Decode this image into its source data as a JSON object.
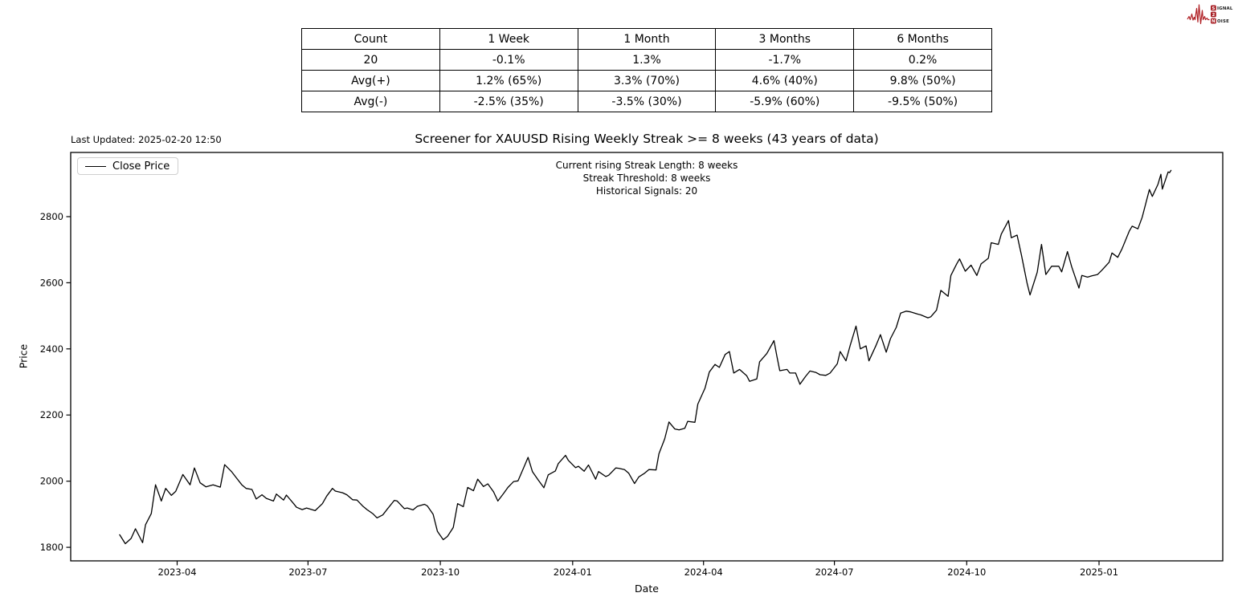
{
  "logo": {
    "word1_initial": "S",
    "word1_rest": "IGNAL",
    "word2": "2",
    "word3_initial": "N",
    "word3_rest": "OISE",
    "accent_color": "#a81e24"
  },
  "stats_table": {
    "headers": [
      "Count",
      "1 Week",
      "1 Month",
      "3 Months",
      "6 Months"
    ],
    "rows": [
      [
        "20",
        "-0.1%",
        "1.3%",
        "-1.7%",
        "0.2%"
      ],
      [
        "Avg(+)",
        "1.2% (65%)",
        "3.3% (70%)",
        "4.6% (40%)",
        "9.8% (50%)"
      ],
      [
        "Avg(-)",
        "-2.5% (35%)",
        "-3.5% (30%)",
        "-5.9% (60%)",
        "-9.5% (50%)"
      ]
    ]
  },
  "chart": {
    "last_updated": "Last Updated: 2025-02-20 12:50",
    "title": "Screener for XAUUSD Rising Weekly Streak >= 8 weeks (43 years of data)",
    "annotations": [
      "Current rising Streak Length: 8 weeks",
      "Streak Threshold: 8 weeks",
      "Historical Signals: 20"
    ],
    "legend_label": "Close Price",
    "xlabel": "Date",
    "ylabel": "Price"
  },
  "chart_data": {
    "type": "line",
    "title": "Screener for XAUUSD Rising Weekly Streak >= 8 weeks (43 years of data)",
    "xlabel": "Date",
    "ylabel": "Price",
    "grid": false,
    "legend_position": "upper left",
    "line_color": "#000000",
    "x_domain": [
      "2023-01-17",
      "2025-03-28"
    ],
    "y_domain": [
      1759,
      2994
    ],
    "yticks": [
      1800,
      2000,
      2200,
      2400,
      2600,
      2800
    ],
    "xticks": [
      {
        "label": "2023-04",
        "date": "2023-04-01"
      },
      {
        "label": "2023-07",
        "date": "2023-07-01"
      },
      {
        "label": "2023-10",
        "date": "2023-10-01"
      },
      {
        "label": "2024-01",
        "date": "2024-01-01"
      },
      {
        "label": "2024-04",
        "date": "2024-04-01"
      },
      {
        "label": "2024-07",
        "date": "2024-07-01"
      },
      {
        "label": "2024-10",
        "date": "2024-10-01"
      },
      {
        "label": "2025-01",
        "date": "2025-01-01"
      }
    ],
    "series": [
      {
        "name": "Close Price",
        "color": "#000000",
        "data": [
          [
            "2023-02-20",
            1838
          ],
          [
            "2023-02-24",
            1811
          ],
          [
            "2023-02-28",
            1827
          ],
          [
            "2023-03-03",
            1856
          ],
          [
            "2023-03-08",
            1814
          ],
          [
            "2023-03-10",
            1868
          ],
          [
            "2023-03-14",
            1902
          ],
          [
            "2023-03-17",
            1989
          ],
          [
            "2023-03-21",
            1940
          ],
          [
            "2023-03-24",
            1978
          ],
          [
            "2023-03-28",
            1957
          ],
          [
            "2023-03-31",
            1969
          ],
          [
            "2023-04-05",
            2020
          ],
          [
            "2023-04-10",
            1989
          ],
          [
            "2023-04-13",
            2040
          ],
          [
            "2023-04-17",
            1995
          ],
          [
            "2023-04-21",
            1983
          ],
          [
            "2023-04-26",
            1989
          ],
          [
            "2023-05-01",
            1982
          ],
          [
            "2023-05-04",
            2050
          ],
          [
            "2023-05-09",
            2028
          ],
          [
            "2023-05-12",
            2011
          ],
          [
            "2023-05-16",
            1989
          ],
          [
            "2023-05-19",
            1978
          ],
          [
            "2023-05-23",
            1975
          ],
          [
            "2023-05-26",
            1946
          ],
          [
            "2023-05-30",
            1959
          ],
          [
            "2023-06-02",
            1948
          ],
          [
            "2023-06-07",
            1940
          ],
          [
            "2023-06-09",
            1961
          ],
          [
            "2023-06-14",
            1943
          ],
          [
            "2023-06-16",
            1958
          ],
          [
            "2023-06-21",
            1932
          ],
          [
            "2023-06-23",
            1921
          ],
          [
            "2023-06-27",
            1914
          ],
          [
            "2023-06-30",
            1919
          ],
          [
            "2023-07-06",
            1911
          ],
          [
            "2023-07-11",
            1932
          ],
          [
            "2023-07-14",
            1955
          ],
          [
            "2023-07-18",
            1978
          ],
          [
            "2023-07-20",
            1970
          ],
          [
            "2023-07-25",
            1965
          ],
          [
            "2023-07-28",
            1959
          ],
          [
            "2023-08-01",
            1944
          ],
          [
            "2023-08-04",
            1943
          ],
          [
            "2023-08-08",
            1925
          ],
          [
            "2023-08-11",
            1914
          ],
          [
            "2023-08-15",
            1902
          ],
          [
            "2023-08-18",
            1889
          ],
          [
            "2023-08-22",
            1898
          ],
          [
            "2023-08-25",
            1915
          ],
          [
            "2023-08-30",
            1942
          ],
          [
            "2023-09-01",
            1940
          ],
          [
            "2023-09-06",
            1917
          ],
          [
            "2023-09-08",
            1919
          ],
          [
            "2023-09-12",
            1913
          ],
          [
            "2023-09-15",
            1924
          ],
          [
            "2023-09-20",
            1930
          ],
          [
            "2023-09-22",
            1925
          ],
          [
            "2023-09-26",
            1900
          ],
          [
            "2023-09-29",
            1848
          ],
          [
            "2023-10-03",
            1823
          ],
          [
            "2023-10-06",
            1833
          ],
          [
            "2023-10-10",
            1860
          ],
          [
            "2023-10-13",
            1932
          ],
          [
            "2023-10-17",
            1923
          ],
          [
            "2023-10-20",
            1981
          ],
          [
            "2023-10-24",
            1971
          ],
          [
            "2023-10-27",
            2006
          ],
          [
            "2023-10-31",
            1984
          ],
          [
            "2023-11-03",
            1992
          ],
          [
            "2023-11-07",
            1968
          ],
          [
            "2023-11-10",
            1940
          ],
          [
            "2023-11-14",
            1963
          ],
          [
            "2023-11-17",
            1981
          ],
          [
            "2023-11-21",
            1999
          ],
          [
            "2023-11-24",
            2001
          ],
          [
            "2023-11-28",
            2041
          ],
          [
            "2023-12-01",
            2072
          ],
          [
            "2023-12-04",
            2029
          ],
          [
            "2023-12-08",
            2004
          ],
          [
            "2023-12-12",
            1980
          ],
          [
            "2023-12-15",
            2019
          ],
          [
            "2023-12-20",
            2031
          ],
          [
            "2023-12-22",
            2053
          ],
          [
            "2023-12-27",
            2078
          ],
          [
            "2023-12-29",
            2063
          ],
          [
            "2024-01-03",
            2041
          ],
          [
            "2024-01-05",
            2045
          ],
          [
            "2024-01-09",
            2030
          ],
          [
            "2024-01-12",
            2049
          ],
          [
            "2024-01-17",
            2006
          ],
          [
            "2024-01-19",
            2029
          ],
          [
            "2024-01-24",
            2014
          ],
          [
            "2024-01-26",
            2018
          ],
          [
            "2024-01-31",
            2040
          ],
          [
            "2024-02-02",
            2039
          ],
          [
            "2024-02-06",
            2035
          ],
          [
            "2024-02-09",
            2024
          ],
          [
            "2024-02-13",
            1993
          ],
          [
            "2024-02-16",
            2013
          ],
          [
            "2024-02-20",
            2024
          ],
          [
            "2024-02-23",
            2035
          ],
          [
            "2024-02-28",
            2034
          ],
          [
            "2024-03-01",
            2083
          ],
          [
            "2024-03-05",
            2128
          ],
          [
            "2024-03-08",
            2179
          ],
          [
            "2024-03-12",
            2158
          ],
          [
            "2024-03-15",
            2155
          ],
          [
            "2024-03-19",
            2160
          ],
          [
            "2024-03-21",
            2181
          ],
          [
            "2024-03-26",
            2178
          ],
          [
            "2024-03-28",
            2233
          ],
          [
            "2024-04-02",
            2281
          ],
          [
            "2024-04-05",
            2330
          ],
          [
            "2024-04-09",
            2353
          ],
          [
            "2024-04-12",
            2344
          ],
          [
            "2024-04-16",
            2383
          ],
          [
            "2024-04-19",
            2392
          ],
          [
            "2024-04-22",
            2327
          ],
          [
            "2024-04-26",
            2338
          ],
          [
            "2024-05-01",
            2319
          ],
          [
            "2024-05-03",
            2302
          ],
          [
            "2024-05-08",
            2309
          ],
          [
            "2024-05-10",
            2361
          ],
          [
            "2024-05-15",
            2386
          ],
          [
            "2024-05-20",
            2425
          ],
          [
            "2024-05-22",
            2378
          ],
          [
            "2024-05-24",
            2334
          ],
          [
            "2024-05-29",
            2338
          ],
          [
            "2024-05-31",
            2327
          ],
          [
            "2024-06-04",
            2327
          ],
          [
            "2024-06-07",
            2293
          ],
          [
            "2024-06-11",
            2317
          ],
          [
            "2024-06-14",
            2333
          ],
          [
            "2024-06-18",
            2329
          ],
          [
            "2024-06-21",
            2322
          ],
          [
            "2024-06-25",
            2320
          ],
          [
            "2024-06-28",
            2327
          ],
          [
            "2024-07-03",
            2355
          ],
          [
            "2024-07-05",
            2392
          ],
          [
            "2024-07-09",
            2364
          ],
          [
            "2024-07-12",
            2411
          ],
          [
            "2024-07-16",
            2469
          ],
          [
            "2024-07-19",
            2400
          ],
          [
            "2024-07-23",
            2409
          ],
          [
            "2024-07-25",
            2364
          ],
          [
            "2024-07-30",
            2411
          ],
          [
            "2024-08-02",
            2443
          ],
          [
            "2024-08-06",
            2390
          ],
          [
            "2024-08-09",
            2431
          ],
          [
            "2024-08-13",
            2465
          ],
          [
            "2024-08-16",
            2508
          ],
          [
            "2024-08-20",
            2514
          ],
          [
            "2024-08-23",
            2512
          ],
          [
            "2024-08-28",
            2505
          ],
          [
            "2024-08-30",
            2503
          ],
          [
            "2024-09-04",
            2494
          ],
          [
            "2024-09-06",
            2497
          ],
          [
            "2024-09-10",
            2517
          ],
          [
            "2024-09-13",
            2577
          ],
          [
            "2024-09-18",
            2559
          ],
          [
            "2024-09-20",
            2622
          ],
          [
            "2024-09-24",
            2657
          ],
          [
            "2024-09-26",
            2672
          ],
          [
            "2024-09-30",
            2635
          ],
          [
            "2024-10-04",
            2653
          ],
          [
            "2024-10-08",
            2622
          ],
          [
            "2024-10-11",
            2657
          ],
          [
            "2024-10-16",
            2674
          ],
          [
            "2024-10-18",
            2721
          ],
          [
            "2024-10-23",
            2716
          ],
          [
            "2024-10-25",
            2747
          ],
          [
            "2024-10-30",
            2788
          ],
          [
            "2024-11-01",
            2736
          ],
          [
            "2024-11-05",
            2744
          ],
          [
            "2024-11-08",
            2684
          ],
          [
            "2024-11-12",
            2598
          ],
          [
            "2024-11-14",
            2563
          ],
          [
            "2024-11-19",
            2632
          ],
          [
            "2024-11-22",
            2716
          ],
          [
            "2024-11-25",
            2625
          ],
          [
            "2024-11-29",
            2650
          ],
          [
            "2024-12-04",
            2650
          ],
          [
            "2024-12-06",
            2633
          ],
          [
            "2024-12-10",
            2694
          ],
          [
            "2024-12-13",
            2648
          ],
          [
            "2024-12-18",
            2584
          ],
          [
            "2024-12-20",
            2622
          ],
          [
            "2024-12-24",
            2617
          ],
          [
            "2024-12-27",
            2621
          ],
          [
            "2024-12-31",
            2625
          ],
          [
            "2025-01-03",
            2638
          ],
          [
            "2025-01-08",
            2662
          ],
          [
            "2025-01-10",
            2690
          ],
          [
            "2025-01-14",
            2677
          ],
          [
            "2025-01-17",
            2703
          ],
          [
            "2025-01-22",
            2756
          ],
          [
            "2025-01-24",
            2771
          ],
          [
            "2025-01-28",
            2763
          ],
          [
            "2025-01-31",
            2798
          ],
          [
            "2025-02-05",
            2882
          ],
          [
            "2025-02-07",
            2861
          ],
          [
            "2025-02-11",
            2898
          ],
          [
            "2025-02-13",
            2928
          ],
          [
            "2025-02-14",
            2883
          ],
          [
            "2025-02-18",
            2935
          ],
          [
            "2025-02-19",
            2933
          ],
          [
            "2025-02-20",
            2940
          ]
        ]
      }
    ]
  }
}
